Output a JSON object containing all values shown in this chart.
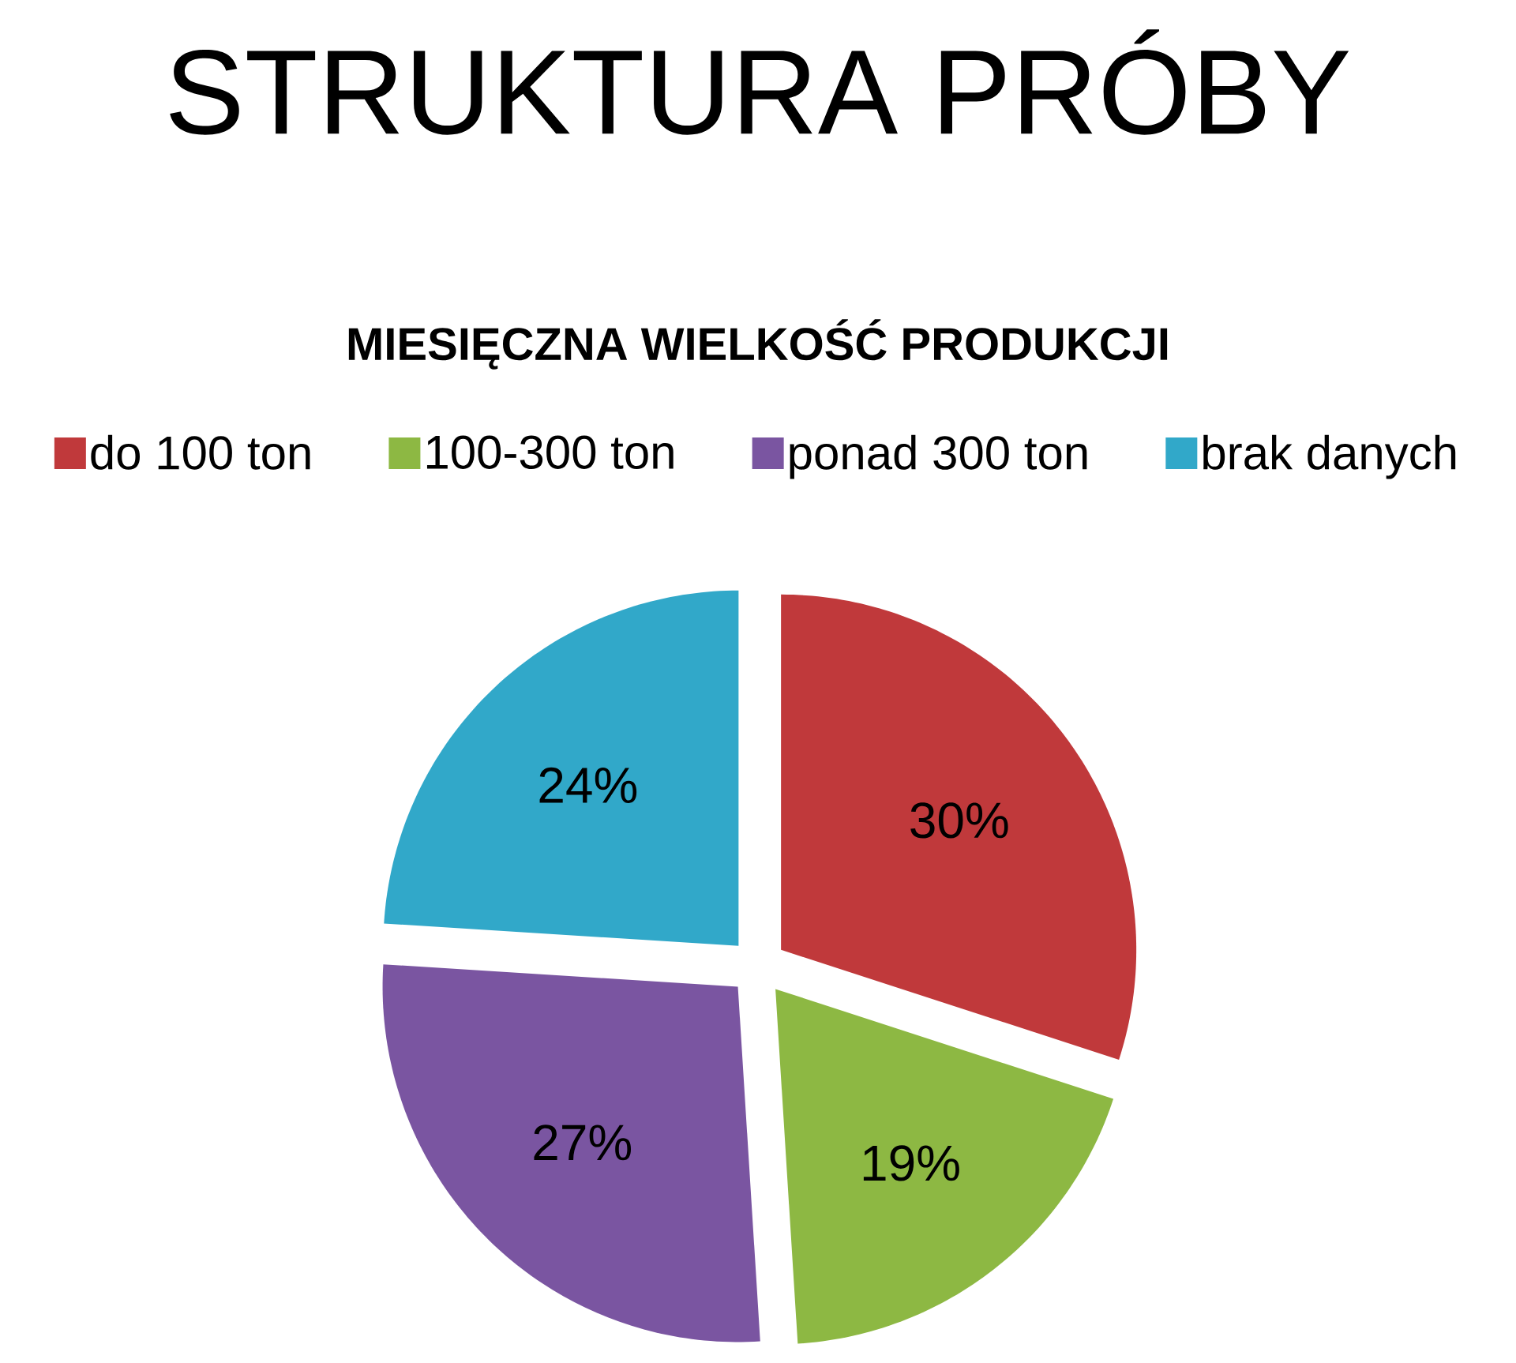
{
  "chart_data": {
    "type": "pie",
    "title": "STRUKTURA PRÓBY",
    "subtitle": "MIESIĘCZNA WIELKOŚĆ PRODUKCJI",
    "categories": [
      "do 100 ton",
      "100-300 ton",
      "ponad 300 ton",
      "brak danych"
    ],
    "values": [
      30,
      19,
      27,
      24
    ],
    "colors": [
      "#c0393b",
      "#8db843",
      "#7a55a1",
      "#31a8c9"
    ],
    "value_labels": [
      "30%",
      "19%",
      "27%",
      "24%"
    ],
    "legend": "top"
  }
}
